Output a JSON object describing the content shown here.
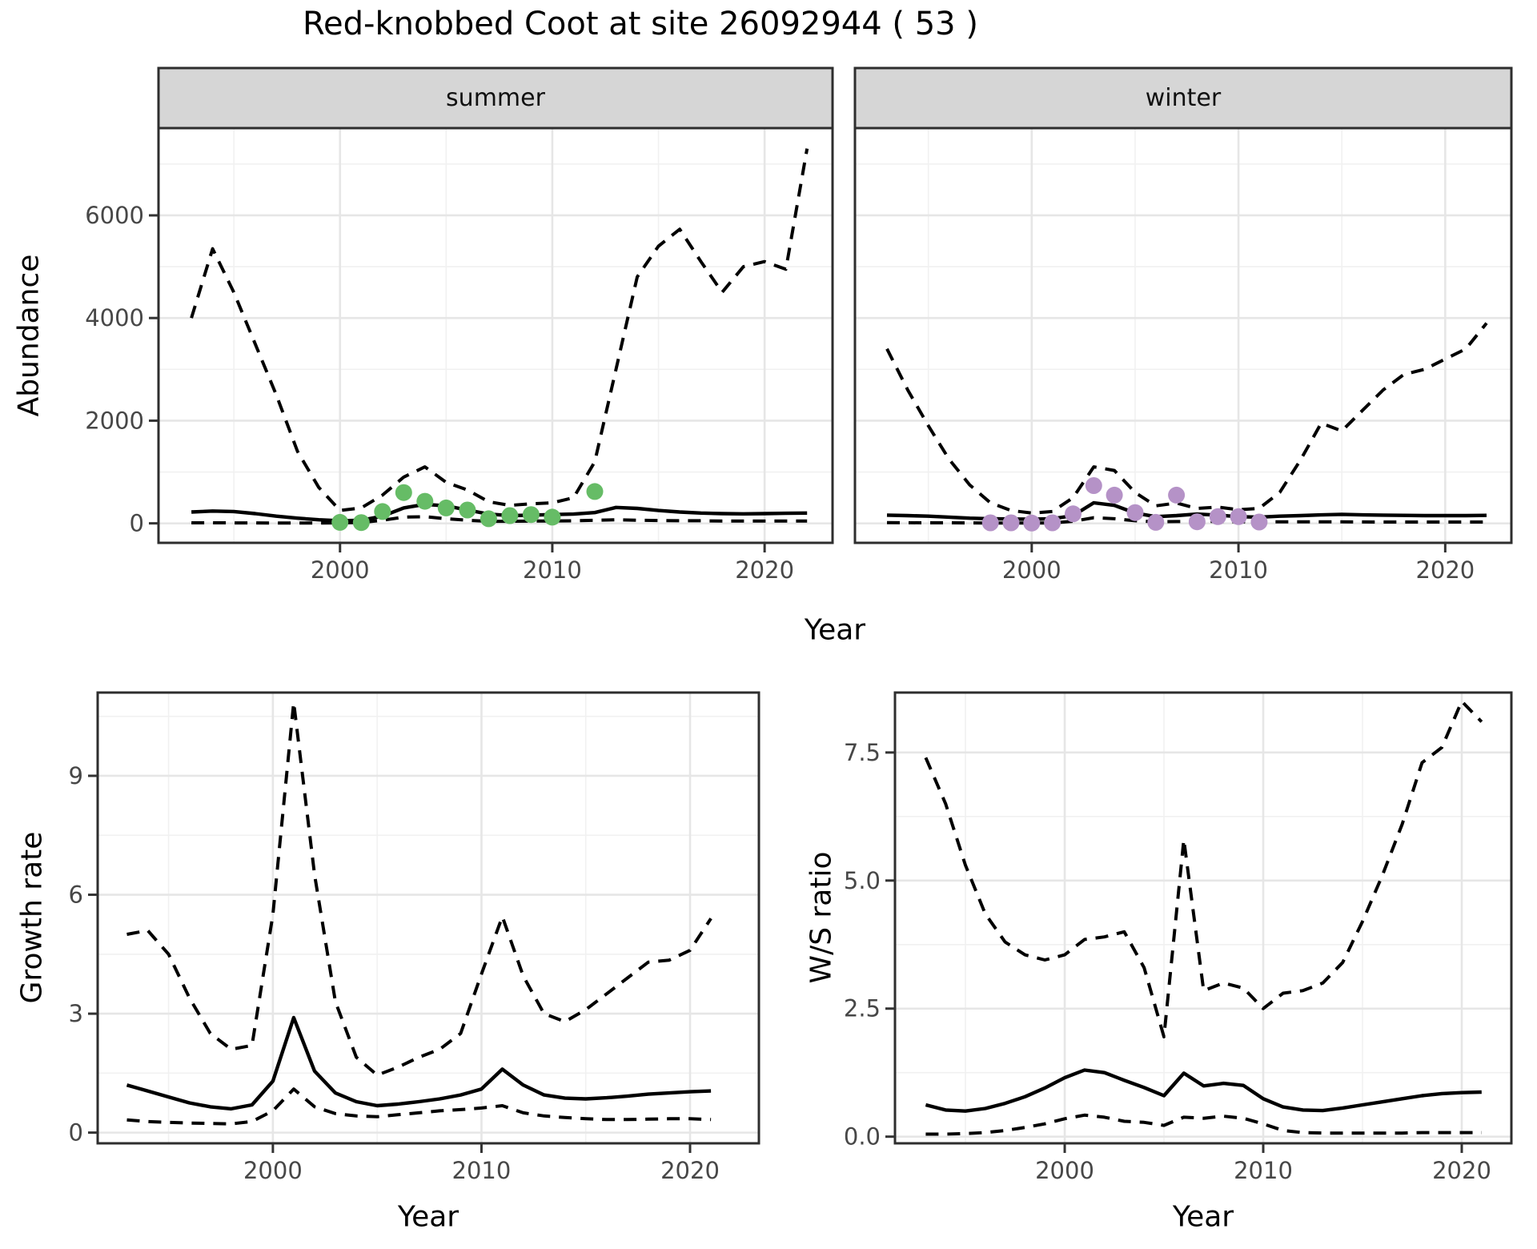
{
  "title": "Red-knobbed Coot at site 26092944 ( 53 )",
  "axis": {
    "abundance_y_title": "Abundance",
    "growth_y_title": "Growth rate",
    "ws_y_title": "W/S ratio",
    "x_title": "Year"
  },
  "colors": {
    "line": "#000000",
    "grid_major": "#e6e6e6",
    "grid_minor": "#f1f1f1",
    "panel_border": "#2e2e2e",
    "strip_bg": "#d6d6d6",
    "tick_mark": "#333333",
    "tick_text": "#474747",
    "summer_points": "#66bc66",
    "winter_points": "#b592c7"
  },
  "chart_data": [
    {
      "id": "abundance-summer",
      "type": "line",
      "facet_label": "summer",
      "ylabel": "Abundance",
      "xlabel": "Year",
      "xlim": [
        1991.45,
        2023.2
      ],
      "ylim": [
        -380,
        7700
      ],
      "x_major_ticks": [
        2000,
        2010,
        2020
      ],
      "x_tick_labels": [
        "2000",
        "2010",
        "2020"
      ],
      "x_minor_ticks": [
        1995,
        2005,
        2015
      ],
      "y_major_ticks": [
        0,
        2000,
        4000,
        6000
      ],
      "y_tick_labels": [
        "0",
        "2000",
        "4000",
        "6000"
      ],
      "y_minor_ticks": [
        1000,
        3000,
        5000,
        7000
      ],
      "grid": true,
      "legend": "none",
      "x": [
        1993,
        1994,
        1995,
        1996,
        1997,
        1998,
        1999,
        2000,
        2001,
        2002,
        2003,
        2004,
        2005,
        2006,
        2007,
        2008,
        2009,
        2010,
        2011,
        2012,
        2013,
        2014,
        2015,
        2016,
        2017,
        2018,
        2019,
        2020,
        2021,
        2022
      ],
      "series": [
        {
          "name": "upper_ci",
          "style": "dashed",
          "values": [
            4000,
            5350,
            4500,
            3500,
            2500,
            1400,
            700,
            250,
            300,
            550,
            900,
            1100,
            800,
            650,
            420,
            350,
            380,
            400,
            500,
            1200,
            3000,
            4800,
            5400,
            5730,
            5100,
            4500,
            5000,
            5100,
            4950,
            7300
          ]
        },
        {
          "name": "median",
          "style": "solid",
          "values": [
            220,
            240,
            230,
            190,
            140,
            100,
            70,
            50,
            60,
            140,
            300,
            370,
            340,
            260,
            180,
            150,
            160,
            170,
            180,
            210,
            310,
            290,
            250,
            220,
            200,
            190,
            185,
            190,
            195,
            200
          ]
        },
        {
          "name": "lower_ci",
          "style": "dashed",
          "values": [
            10,
            10,
            8,
            8,
            6,
            5,
            5,
            10,
            15,
            60,
            120,
            130,
            90,
            60,
            40,
            40,
            45,
            45,
            50,
            60,
            70,
            60,
            55,
            50,
            50,
            45,
            45,
            45,
            45,
            45
          ]
        }
      ],
      "points": {
        "name": "observed-counts",
        "color": "#66bc66",
        "x": [
          2000,
          2001,
          2002,
          2003,
          2004,
          2005,
          2006,
          2007,
          2008,
          2009,
          2010,
          2012
        ],
        "y": [
          20,
          15,
          230,
          600,
          430,
          300,
          260,
          90,
          150,
          170,
          120,
          620
        ]
      }
    },
    {
      "id": "abundance-winter",
      "type": "line",
      "facet_label": "winter",
      "ylabel": "Abundance",
      "xlabel": "Year",
      "xlim": [
        1991.45,
        2023.2
      ],
      "ylim": [
        -380,
        7700
      ],
      "x_major_ticks": [
        2000,
        2010,
        2020
      ],
      "x_tick_labels": [
        "2000",
        "2010",
        "2020"
      ],
      "x_minor_ticks": [
        1995,
        2005,
        2015
      ],
      "y_major_ticks": [
        0,
        2000,
        4000,
        6000
      ],
      "y_tick_labels": [],
      "y_minor_ticks": [
        1000,
        3000,
        5000,
        7000
      ],
      "grid": true,
      "legend": "none",
      "x": [
        1993,
        1994,
        1995,
        1996,
        1997,
        1998,
        1999,
        2000,
        2001,
        2002,
        2003,
        2004,
        2005,
        2006,
        2007,
        2008,
        2009,
        2010,
        2011,
        2012,
        2013,
        2014,
        2015,
        2016,
        2017,
        2018,
        2019,
        2020,
        2021,
        2022
      ],
      "series": [
        {
          "name": "upper_ci",
          "style": "dashed",
          "values": [
            3400,
            2600,
            1900,
            1250,
            750,
            400,
            250,
            200,
            230,
            500,
            1100,
            1030,
            600,
            340,
            395,
            290,
            315,
            265,
            290,
            605,
            1235,
            1950,
            1800,
            2200,
            2600,
            2900,
            3000,
            3200,
            3400,
            3900
          ]
        },
        {
          "name": "median",
          "style": "solid",
          "values": [
            160,
            150,
            140,
            120,
            100,
            90,
            85,
            80,
            90,
            150,
            400,
            350,
            200,
            130,
            150,
            180,
            160,
            130,
            120,
            140,
            150,
            165,
            175,
            165,
            160,
            155,
            150,
            150,
            150,
            155
          ]
        },
        {
          "name": "lower_ci",
          "style": "dashed",
          "values": [
            15,
            12,
            10,
            10,
            8,
            6,
            5,
            5,
            8,
            40,
            110,
            90,
            50,
            30,
            35,
            40,
            35,
            30,
            30,
            30,
            30,
            30,
            28,
            27,
            26,
            25,
            25,
            25,
            25,
            25
          ]
        }
      ],
      "points": {
        "name": "observed-counts",
        "color": "#b592c7",
        "x": [
          1998,
          1999,
          2000,
          2001,
          2002,
          2003,
          2004,
          2005,
          2006,
          2007,
          2008,
          2009,
          2010,
          2011
        ],
        "y": [
          10,
          10,
          5,
          10,
          185,
          735,
          550,
          210,
          20,
          550,
          30,
          130,
          130,
          25
        ]
      }
    },
    {
      "id": "growth-rate",
      "type": "line",
      "facet_label": "",
      "ylabel": "Growth rate",
      "xlabel": "Year",
      "xlim": [
        1991.6,
        2023.3
      ],
      "ylim": [
        -0.27,
        11.1
      ],
      "x_major_ticks": [
        2000,
        2010,
        2020
      ],
      "x_tick_labels": [
        "2000",
        "2010",
        "2020"
      ],
      "x_minor_ticks": [
        1995,
        2005,
        2015
      ],
      "y_major_ticks": [
        0,
        3,
        6,
        9
      ],
      "y_tick_labels": [
        "0",
        "3",
        "6",
        "9"
      ],
      "y_minor_ticks": [
        1.5,
        4.5,
        7.5,
        10.5
      ],
      "grid": true,
      "legend": "none",
      "x": [
        1993,
        1994,
        1995,
        1996,
        1997,
        1998,
        1999,
        2000,
        2001,
        2002,
        2003,
        2004,
        2005,
        2006,
        2007,
        2008,
        2009,
        2010,
        2011,
        2012,
        2013,
        2014,
        2015,
        2016,
        2017,
        2018,
        2019,
        2020,
        2021
      ],
      "series": [
        {
          "name": "upper_ci",
          "style": "dashed",
          "values": [
            5.0,
            5.1,
            4.5,
            3.4,
            2.5,
            2.1,
            2.2,
            5.5,
            10.85,
            6.5,
            3.3,
            1.9,
            1.45,
            1.65,
            1.9,
            2.1,
            2.5,
            4.0,
            5.45,
            3.95,
            3.0,
            2.8,
            3.1,
            3.5,
            3.9,
            4.3,
            4.35,
            4.6,
            5.4
          ]
        },
        {
          "name": "median",
          "style": "solid",
          "values": [
            1.2,
            1.05,
            0.9,
            0.75,
            0.65,
            0.6,
            0.7,
            1.3,
            2.9,
            1.55,
            1.0,
            0.78,
            0.68,
            0.72,
            0.78,
            0.85,
            0.95,
            1.1,
            1.6,
            1.2,
            0.95,
            0.87,
            0.85,
            0.88,
            0.92,
            0.97,
            1.0,
            1.03,
            1.05
          ]
        },
        {
          "name": "lower_ci",
          "style": "dashed",
          "values": [
            0.32,
            0.28,
            0.26,
            0.24,
            0.23,
            0.22,
            0.28,
            0.55,
            1.1,
            0.65,
            0.48,
            0.42,
            0.4,
            0.45,
            0.5,
            0.55,
            0.58,
            0.62,
            0.68,
            0.5,
            0.42,
            0.38,
            0.35,
            0.33,
            0.33,
            0.34,
            0.35,
            0.35,
            0.33
          ]
        }
      ],
      "points": null
    },
    {
      "id": "ws-ratio",
      "type": "line",
      "facet_label": "",
      "ylabel": "W/S ratio",
      "xlabel": "Year",
      "xlim": [
        1991.45,
        2022.5
      ],
      "ylim": [
        -0.13,
        8.67
      ],
      "x_major_ticks": [
        2000,
        2010,
        2020
      ],
      "x_tick_labels": [
        "2000",
        "2010",
        "2020"
      ],
      "x_minor_ticks": [
        1995,
        2005,
        2015
      ],
      "y_major_ticks": [
        0,
        2.5,
        5,
        7.5
      ],
      "y_tick_labels": [
        "0.0",
        "2.5",
        "5.0",
        "7.5"
      ],
      "y_minor_ticks": [
        1.25,
        3.75,
        6.25
      ],
      "grid": true,
      "legend": "none",
      "x": [
        1993,
        1994,
        1995,
        1996,
        1997,
        1998,
        1999,
        2000,
        2001,
        2002,
        2003,
        2004,
        2005,
        2006,
        2007,
        2008,
        2009,
        2010,
        2011,
        2012,
        2013,
        2014,
        2015,
        2016,
        2017,
        2018,
        2019,
        2020,
        2021
      ],
      "series": [
        {
          "name": "upper_ci",
          "style": "dashed",
          "values": [
            7.4,
            6.5,
            5.3,
            4.35,
            3.8,
            3.55,
            3.45,
            3.55,
            3.85,
            3.9,
            4.0,
            3.3,
            1.95,
            5.8,
            2.85,
            3.0,
            2.9,
            2.5,
            2.8,
            2.85,
            3.0,
            3.4,
            4.2,
            5.1,
            6.1,
            7.3,
            7.6,
            8.5,
            8.1
          ]
        },
        {
          "name": "median",
          "style": "solid",
          "values": [
            0.62,
            0.52,
            0.5,
            0.55,
            0.65,
            0.78,
            0.95,
            1.15,
            1.3,
            1.25,
            1.1,
            0.96,
            0.8,
            1.24,
            0.99,
            1.04,
            1.0,
            0.74,
            0.58,
            0.52,
            0.51,
            0.56,
            0.62,
            0.68,
            0.74,
            0.8,
            0.84,
            0.86,
            0.87
          ]
        },
        {
          "name": "lower_ci",
          "style": "dashed",
          "values": [
            0.05,
            0.05,
            0.06,
            0.08,
            0.12,
            0.18,
            0.25,
            0.35,
            0.42,
            0.38,
            0.3,
            0.28,
            0.22,
            0.38,
            0.36,
            0.4,
            0.36,
            0.25,
            0.12,
            0.08,
            0.07,
            0.07,
            0.07,
            0.07,
            0.07,
            0.08,
            0.08,
            0.08,
            0.08
          ]
        }
      ],
      "points": null
    }
  ]
}
